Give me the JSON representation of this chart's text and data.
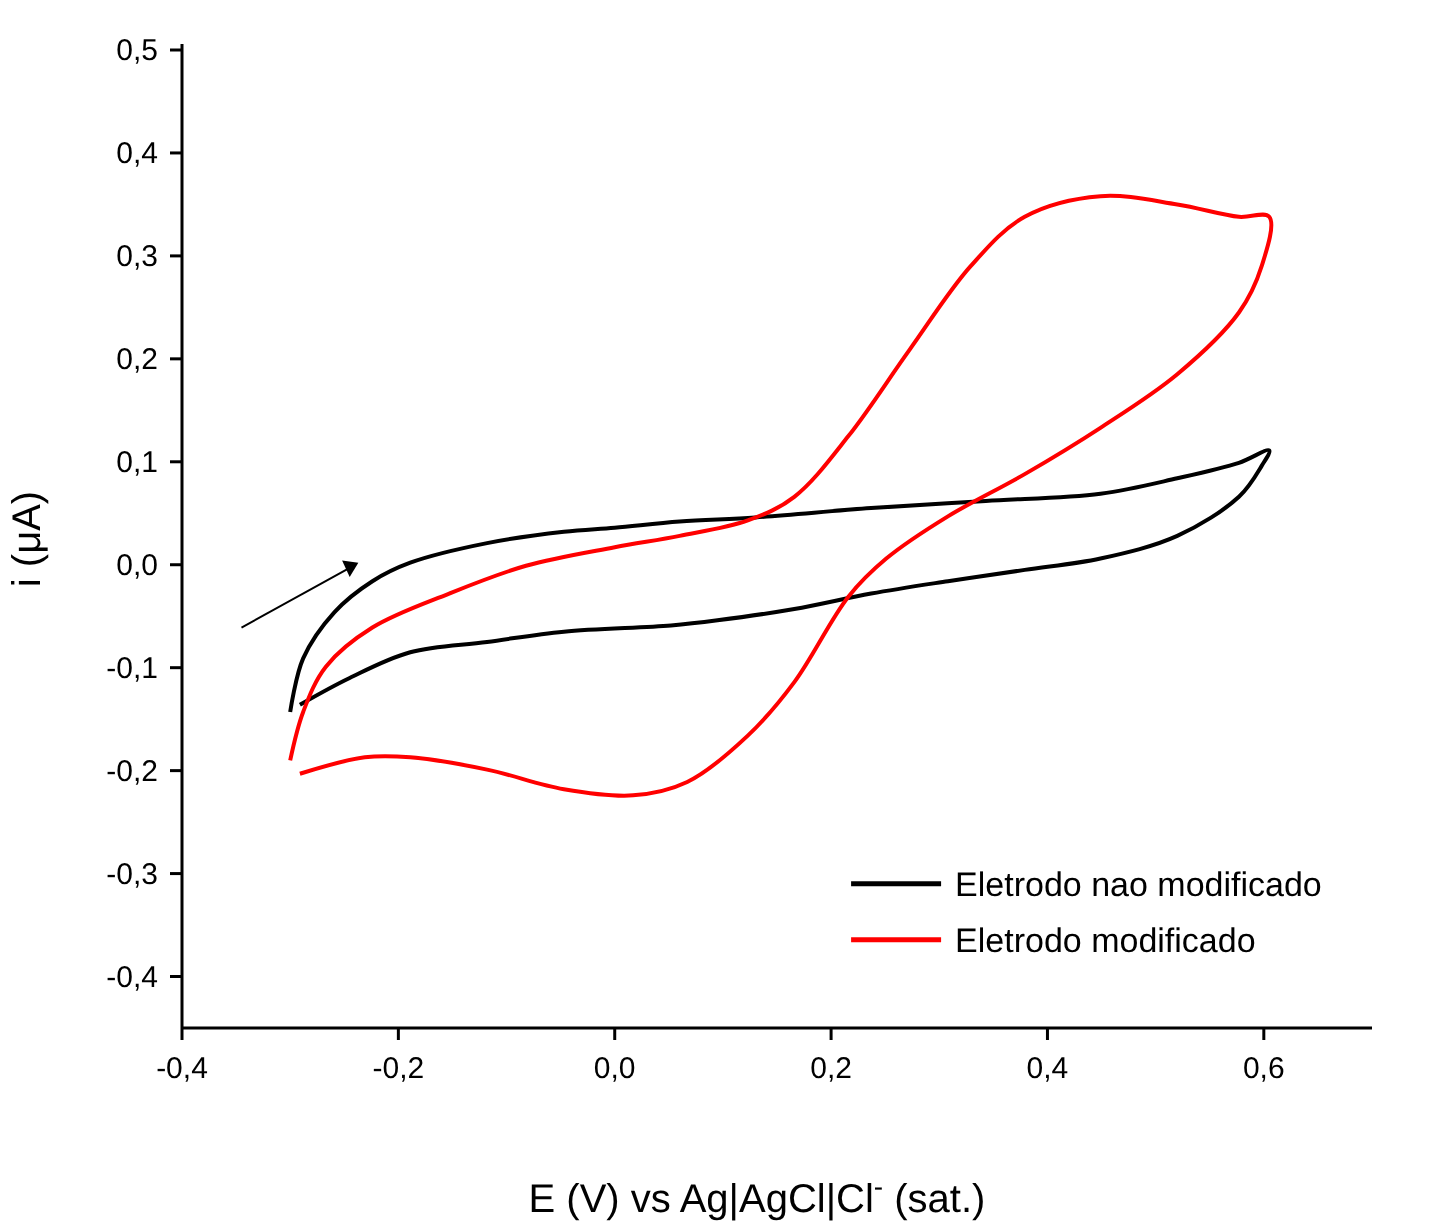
{
  "chart_data": {
    "type": "line",
    "xlabel": "E (V) vs Ag|AgCl|Cl$^{-}$ (sat.)",
    "ylabel": "i (μA)",
    "xlim": [
      -0.4,
      0.7
    ],
    "ylim": [
      -0.45,
      0.5
    ],
    "xticks": [
      {
        "value": -0.4,
        "label": "-0,4"
      },
      {
        "value": -0.2,
        "label": "-0,2"
      },
      {
        "value": 0,
        "label": "0,0"
      },
      {
        "value": 0.2,
        "label": "0,2"
      },
      {
        "value": 0.4,
        "label": "0,4"
      },
      {
        "value": 0.6,
        "label": "0,6"
      }
    ],
    "yticks": [
      {
        "value": -0.4,
        "label": "-0,4"
      },
      {
        "value": -0.3,
        "label": "-0,3"
      },
      {
        "value": -0.2,
        "label": "-0,2"
      },
      {
        "value": -0.1,
        "label": "-0,1"
      },
      {
        "value": 0,
        "label": "0,0"
      },
      {
        "value": 0.1,
        "label": "0,1"
      },
      {
        "value": 0.2,
        "label": "0,2"
      },
      {
        "value": 0.3,
        "label": "0,3"
      },
      {
        "value": 0.4,
        "label": "0,4"
      },
      {
        "value": 0.5,
        "label": "0,5"
      }
    ],
    "grid": false,
    "legend": "bottom right",
    "marker": "none",
    "line_style": "solid",
    "series": [
      {
        "name": "Eletrodo nao modificado",
        "color": "#000000",
        "x": [
          -0.3,
          -0.288,
          -0.259,
          -0.224,
          -0.189,
          -0.118,
          -0.047,
          0,
          0.06,
          0.13,
          0.237,
          0.343,
          0.449,
          0.52,
          0.577,
          0.605,
          0.598,
          0.577,
          0.52,
          0.449,
          0.379,
          0.308,
          0.237,
          0.166,
          0.095,
          0.052,
          -0.047,
          -0.118,
          -0.189,
          -0.245,
          -0.291
        ],
        "values": [
          -0.143,
          -0.091,
          -0.046,
          -0.016,
          0.002,
          0.021,
          0.032,
          0.036,
          0.042,
          0.046,
          0.055,
          0.062,
          0.069,
          0.084,
          0.099,
          0.111,
          0.096,
          0.066,
          0.028,
          0.006,
          -0.005,
          -0.016,
          -0.028,
          -0.043,
          -0.054,
          -0.059,
          -0.065,
          -0.075,
          -0.085,
          -0.11,
          -0.136
        ]
      },
      {
        "name": "Eletrodo modificado",
        "color": "#ff0000",
        "x": [
          -0.3,
          -0.288,
          -0.267,
          -0.224,
          -0.153,
          -0.082,
          0,
          0.06,
          0.123,
          0.166,
          0.216,
          0.272,
          0.329,
          0.379,
          0.449,
          0.52,
          0.577,
          0.605,
          0.598,
          0.577,
          0.52,
          0.449,
          0.379,
          0.308,
          0.251,
          0.216,
          0.166,
          0.123,
          0.067,
          0.017,
          -0.047,
          -0.118,
          -0.189,
          -0.231,
          -0.291
        ],
        "values": [
          -0.19,
          -0.143,
          -0.099,
          -0.061,
          -0.028,
          -0.001,
          0.017,
          0.028,
          0.043,
          0.066,
          0.125,
          0.208,
          0.29,
          0.338,
          0.358,
          0.35,
          0.338,
          0.338,
          0.29,
          0.245,
          0.185,
          0.133,
          0.088,
          0.047,
          0.006,
          -0.031,
          -0.114,
          -0.166,
          -0.211,
          -0.224,
          -0.218,
          -0.199,
          -0.187,
          -0.187,
          -0.203
        ]
      }
    ]
  }
}
